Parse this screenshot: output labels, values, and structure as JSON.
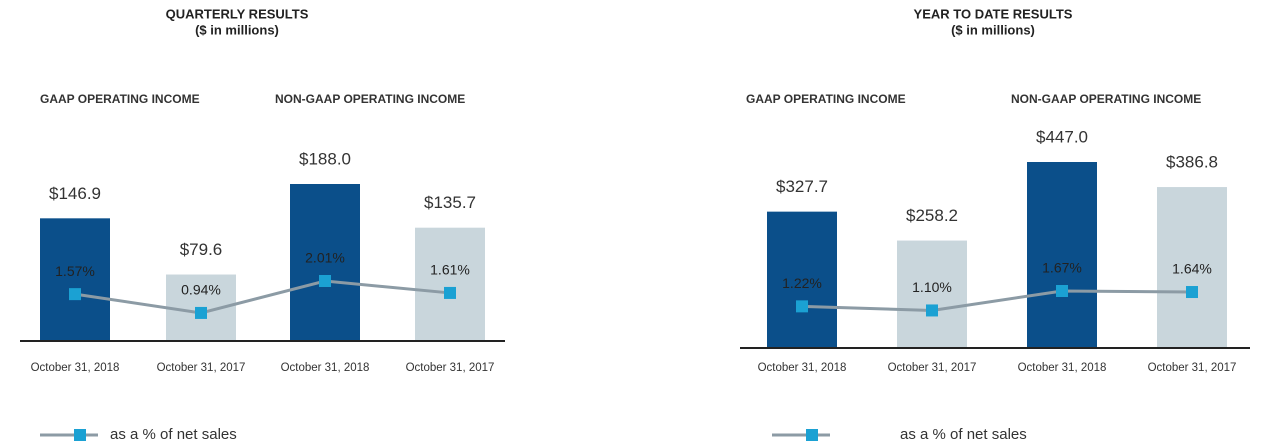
{
  "chart_data": [
    {
      "type": "bar",
      "title": "QUARTERLY RESULTS",
      "subtitle": "($ in millions)",
      "groups": [
        "GAAP OPERATING INCOME",
        "NON-GAAP OPERATING INCOME"
      ],
      "categories": [
        "October 31, 2018",
        "October 31, 2017",
        "October 31, 2018",
        "October 31, 2017"
      ],
      "series": [
        {
          "values": [
            146.9,
            79.6,
            188.0,
            135.7
          ],
          "value_labels": [
            "$146.9",
            "$79.6",
            "$188.0",
            "$135.7"
          ],
          "colors": [
            "#0b4f8a",
            "#c9d6dc",
            "#0b4f8a",
            "#c9d6dc"
          ]
        },
        {
          "name": "as a % of net sales",
          "type": "line",
          "color": "#8c9ba5",
          "marker_color": "#1ba1d3",
          "values": [
            1.57,
            0.94,
            2.01,
            1.61
          ],
          "value_labels": [
            "1.57%",
            "0.94%",
            "2.01%",
            "1.61%"
          ]
        }
      ]
    },
    {
      "type": "bar",
      "title": "YEAR TO DATE RESULTS",
      "subtitle": "($ in millions)",
      "groups": [
        "GAAP OPERATING INCOME",
        "NON-GAAP OPERATING INCOME"
      ],
      "categories": [
        "October 31, 2018",
        "October 31, 2017",
        "October 31, 2018",
        "October 31, 2017"
      ],
      "series": [
        {
          "values": [
            327.7,
            258.2,
            447.0,
            386.8
          ],
          "value_labels": [
            "$327.7",
            "$258.2",
            "$447.0",
            "$386.8"
          ],
          "colors": [
            "#0b4f8a",
            "#c9d6dc",
            "#0b4f8a",
            "#c9d6dc"
          ]
        },
        {
          "name": "as a % of net sales",
          "type": "line",
          "color": "#8c9ba5",
          "marker_color": "#1ba1d3",
          "values": [
            1.22,
            1.1,
            1.67,
            1.64
          ],
          "value_labels": [
            "1.22%",
            "1.10%",
            "1.67%",
            "1.64%"
          ]
        }
      ]
    }
  ]
}
